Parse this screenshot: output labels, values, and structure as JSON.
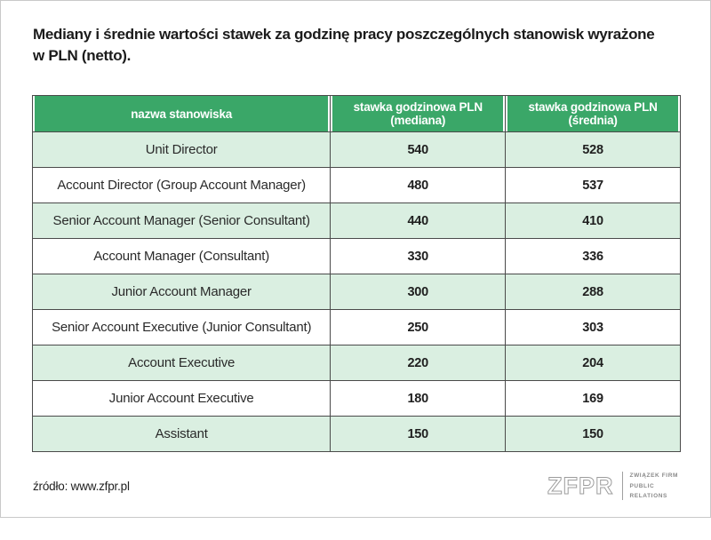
{
  "title": {
    "line1": "Mediany i średnie wartości stawek za godzinę pracy poszczególnych stanowisk wyrażone",
    "line2": "w PLN (netto)."
  },
  "chart_data": {
    "type": "table",
    "title": "Mediany i średnie wartości stawek za godzinę pracy poszczególnych stanowisk wyrażone w PLN (netto).",
    "columns": [
      "nazwa stanowiska",
      "stawka godzinowa PLN (mediana)",
      "stawka godzinowa PLN (średnia)"
    ],
    "rows": [
      [
        "Unit Director",
        540,
        528
      ],
      [
        "Account Director (Group Account Manager)",
        480,
        537
      ],
      [
        "Senior Account Manager (Senior Consultant)",
        440,
        410
      ],
      [
        "Account Manager (Consultant)",
        330,
        336
      ],
      [
        "Junior Account Manager",
        300,
        288
      ],
      [
        "Senior Account Executive (Junior Consultant)",
        250,
        303
      ],
      [
        "Account Executive",
        220,
        204
      ],
      [
        "Junior Account Executive",
        180,
        169
      ],
      [
        "Assistant",
        150,
        150
      ]
    ]
  },
  "footer": {
    "source": "źródło: www.zfpr.pl"
  },
  "logo": {
    "wordmark": "ZFPR",
    "tagline": [
      "ZWIĄZEK FIRM",
      "PUBLIC",
      "RELATIONS"
    ]
  },
  "colors": {
    "header_bg": "#3aa768",
    "row_alt_bg": "#daefe1",
    "border": "#4a4a4a",
    "header_text": "#ffffff"
  }
}
